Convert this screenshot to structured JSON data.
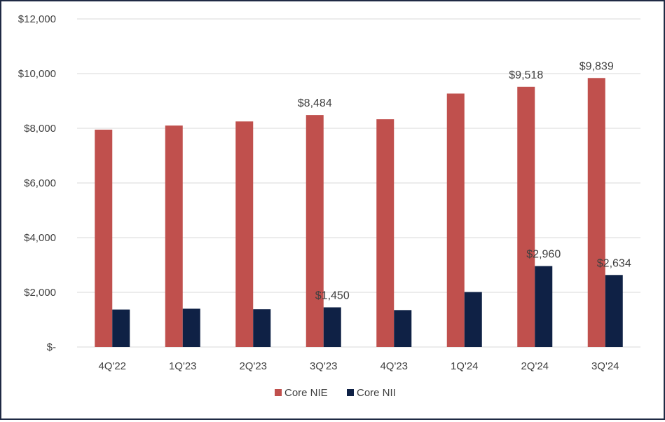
{
  "chart_data": {
    "type": "bar",
    "categories": [
      "4Q'22",
      "1Q'23",
      "2Q'23",
      "3Q'23",
      "4Q'23",
      "1Q'24",
      "2Q'24",
      "3Q'24"
    ],
    "series": [
      {
        "name": "Core NIE",
        "color": "#c0504d",
        "values": [
          7950,
          8100,
          8250,
          8484,
          8330,
          9270,
          9518,
          9839
        ],
        "labels": [
          "",
          "",
          "",
          "$8,484",
          "",
          "",
          "$9,518",
          "$9,839"
        ]
      },
      {
        "name": "Core NII",
        "color": "#0f2145",
        "values": [
          1370,
          1400,
          1380,
          1450,
          1350,
          2010,
          2960,
          2634
        ],
        "labels": [
          "",
          "",
          "",
          "$1,450",
          "",
          "",
          "$2,960",
          "$2,634"
        ]
      }
    ],
    "y_ticks": [
      0,
      2000,
      4000,
      6000,
      8000,
      10000,
      12000
    ],
    "y_tick_labels": [
      "$-",
      "$2,000",
      "$4,000",
      "$6,000",
      "$8,000",
      "$10,000",
      "$12,000"
    ],
    "ylim": [
      0,
      12000
    ],
    "grid": true,
    "legend_position": "bottom"
  }
}
